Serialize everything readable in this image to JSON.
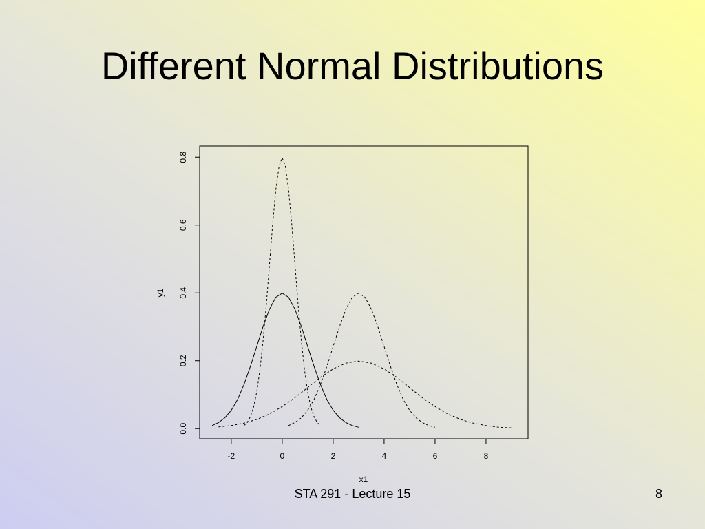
{
  "slide": {
    "title": "Different Normal Distributions",
    "footer": "STA 291 - Lecture 15",
    "page": "8"
  },
  "chart_data": {
    "type": "line",
    "x_label": "x1",
    "y_label": "y1",
    "xlim": [
      -3.24,
      9.65
    ],
    "ylim": [
      -0.03,
      0.833
    ],
    "xticks": [
      -2,
      0,
      2,
      4,
      6,
      8
    ],
    "yticks": [
      {
        "value": 0,
        "label": "0.0"
      },
      0.2,
      0.4,
      0.6,
      0.8
    ],
    "series": [
      {
        "color": "#000000",
        "dashed": false,
        "x": [
          -2.75,
          -2.5,
          -2.25,
          -2,
          -1.75,
          -1.5,
          -1.25,
          -1,
          -0.75,
          -0.5,
          -0.25,
          0,
          0.25,
          0.5,
          0.75,
          1,
          1.25,
          1.5,
          1.75,
          2,
          2.25,
          2.5,
          2.75,
          3
        ],
        "values": [
          0.009,
          0.018,
          0.032,
          0.054,
          0.086,
          0.13,
          0.183,
          0.242,
          0.301,
          0.352,
          0.387,
          0.399,
          0.387,
          0.352,
          0.301,
          0.242,
          0.183,
          0.13,
          0.086,
          0.054,
          0.032,
          0.018,
          0.009,
          0.004
        ]
      },
      {
        "color": "#000000",
        "dashed": true,
        "x": [
          -1.5,
          -1.375,
          -1.25,
          -1.125,
          -1,
          -0.875,
          -0.75,
          -0.625,
          -0.5,
          -0.375,
          -0.25,
          -0.125,
          0,
          0.125,
          0.25,
          0.375,
          0.5,
          0.625,
          0.75,
          0.875,
          1,
          1.125,
          1.25,
          1.375,
          1.5
        ],
        "values": [
          0.009,
          0.018,
          0.035,
          0.063,
          0.108,
          0.173,
          0.259,
          0.365,
          0.484,
          0.602,
          0.704,
          0.773,
          0.798,
          0.773,
          0.704,
          0.602,
          0.484,
          0.365,
          0.259,
          0.173,
          0.108,
          0.063,
          0.035,
          0.018,
          0.009
        ]
      },
      {
        "color": "#000000",
        "dashed": true,
        "x": [
          0.25,
          0.5,
          0.75,
          1,
          1.25,
          1.5,
          1.75,
          2,
          2.25,
          2.5,
          2.75,
          3,
          3.25,
          3.5,
          3.75,
          4,
          4.25,
          4.5,
          4.75,
          5,
          5.25,
          5.5,
          5.75,
          6
        ],
        "values": [
          0.009,
          0.018,
          0.032,
          0.054,
          0.086,
          0.13,
          0.183,
          0.242,
          0.301,
          0.352,
          0.387,
          0.399,
          0.387,
          0.352,
          0.301,
          0.242,
          0.183,
          0.13,
          0.086,
          0.054,
          0.032,
          0.018,
          0.009,
          0.004
        ]
      },
      {
        "color": "#000000",
        "dashed": true,
        "x": [
          -2.5,
          -2,
          -1.5,
          -1,
          -0.5,
          0,
          0.5,
          1,
          1.5,
          2,
          2.5,
          3,
          3.5,
          4,
          4.5,
          5,
          5.5,
          6,
          6.5,
          7,
          7.5,
          8,
          8.5,
          9
        ],
        "values": [
          0.005,
          0.009,
          0.016,
          0.027,
          0.043,
          0.065,
          0.091,
          0.121,
          0.151,
          0.176,
          0.193,
          0.199,
          0.193,
          0.176,
          0.151,
          0.121,
          0.091,
          0.065,
          0.043,
          0.027,
          0.016,
          0.009,
          0.004,
          0.002
        ]
      }
    ]
  }
}
